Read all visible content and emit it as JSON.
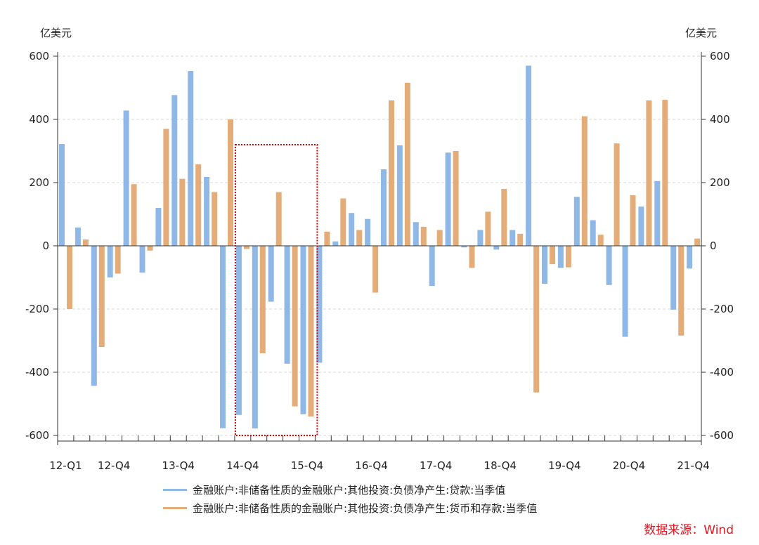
{
  "colors": {
    "series1": "#8fb8e6",
    "series2": "#e3ac79",
    "source": "#e0141e",
    "highlight": "#cc0000"
  },
  "chart_data": {
    "type": "bar",
    "left_unit": "亿美元",
    "right_unit": "亿美元",
    "ylim": [
      -600,
      600
    ],
    "yticks": [
      600,
      400,
      200,
      0,
      -200,
      -400,
      -600
    ],
    "ytick_labels": [
      "600",
      "400",
      "200",
      "0",
      "-200",
      "-400",
      "-600"
    ],
    "categories": [
      "12-Q1",
      "12-Q2",
      "12-Q3",
      "12-Q4",
      "13-Q1",
      "13-Q2",
      "13-Q3",
      "13-Q4",
      "14-Q1",
      "14-Q2",
      "14-Q3",
      "14-Q4",
      "15-Q1",
      "15-Q2",
      "15-Q3",
      "15-Q4",
      "16-Q1",
      "16-Q2",
      "16-Q3",
      "16-Q4",
      "17-Q1",
      "17-Q2",
      "17-Q3",
      "17-Q4",
      "18-Q1",
      "18-Q2",
      "18-Q3",
      "18-Q4",
      "19-Q1",
      "19-Q2",
      "19-Q3",
      "19-Q4",
      "20-Q1",
      "20-Q2",
      "20-Q3",
      "20-Q4",
      "21-Q1",
      "21-Q2",
      "21-Q3",
      "21-Q4"
    ],
    "xtick_labels": [
      "12-Q1",
      "12-Q4",
      "13-Q4",
      "14-Q4",
      "15-Q4",
      "16-Q4",
      "17-Q4",
      "18-Q4",
      "19-Q4",
      "20-Q4",
      "21-Q4"
    ],
    "xtick_indices": [
      0,
      3,
      7,
      11,
      15,
      19,
      23,
      27,
      31,
      35,
      39
    ],
    "series": [
      {
        "name": "金融账户:非储备性质的金融账户:其他投资:负债净产生:贷款:当季值",
        "values": [
          322,
          58,
          -443,
          -100,
          428,
          -85,
          120,
          477,
          553,
          218,
          -577,
          -535,
          -578,
          -177,
          -373,
          -533,
          -370,
          14,
          104,
          85,
          242,
          318,
          75,
          -127,
          295,
          -5,
          50,
          -12,
          50,
          570,
          -120,
          -70,
          155,
          81,
          -124,
          -288,
          124,
          205,
          -202,
          -72
        ]
      },
      {
        "name": "金融账户:非储备性质的金融账户:其他投资:负债净产生:货币和存款:当季值",
        "values": [
          -200,
          20,
          -320,
          -88,
          195,
          -15,
          370,
          212,
          258,
          170,
          400,
          -10,
          -340,
          170,
          -508,
          -540,
          45,
          150,
          50,
          -148,
          460,
          516,
          60,
          50,
          300,
          -70,
          108,
          180,
          38,
          -464,
          -58,
          -68,
          410,
          35,
          324,
          160,
          460,
          462,
          -284,
          23
        ]
      }
    ],
    "highlight_box": {
      "from": "14-Q4",
      "to": "16-Q1",
      "ymin": -600,
      "ymax": 320
    }
  },
  "source_label": "数据来源：Wind"
}
